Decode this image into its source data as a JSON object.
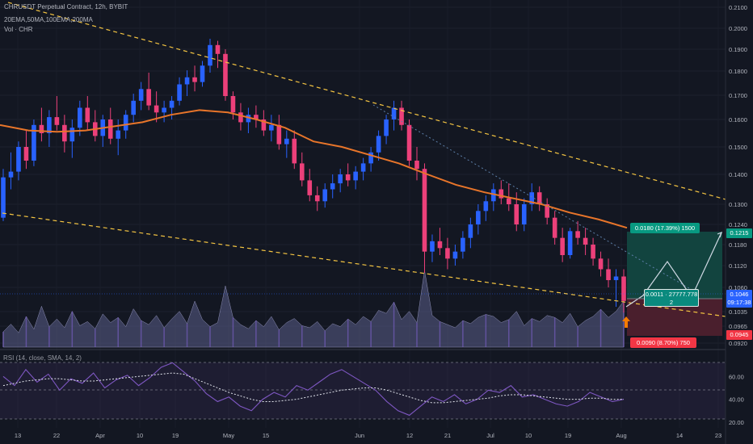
{
  "header": {
    "title": "CHRUSDT Perpetual Contract, 12h, BYBIT",
    "moving_averages": "20EMA,50MA,100EMA,200MA",
    "volume": "Vol · CHR",
    "rsi": "RSI (14, close, SMA, 14, 2)"
  },
  "price_axis": {
    "ticks": [
      "0.2100",
      "0.2000",
      "0.1900",
      "0.1800",
      "0.1700",
      "0.1600",
      "0.1500",
      "0.1400",
      "0.1300",
      "0.1240",
      "0.1180",
      "0.1120",
      "0.1060",
      "0.1035",
      "0.0965",
      "0.0920"
    ],
    "last_price": "0.1046",
    "countdown": "09:17:38",
    "tp_price": "0.1215",
    "sl_price": "0.0945"
  },
  "rsi_axis": {
    "ticks": [
      "60.00",
      "40.00",
      "20.00"
    ],
    "range": [
      15,
      80
    ],
    "bands": [
      70,
      30
    ]
  },
  "time_axis": {
    "labels": [
      "13",
      "22",
      "Apr",
      "10",
      "19",
      "May",
      "15",
      "Jun",
      "12",
      "21",
      "Jul",
      "10",
      "19",
      "Aug",
      "14",
      "23"
    ]
  },
  "position": {
    "target": "0.0180 (17.39%) 1500",
    "entry_line1": "0.0011 · 27777.778",
    "entry_line2": "2",
    "stop": "0.0090 (8.70%) 750"
  },
  "colors": {
    "background": "#131722",
    "bull": "#2962ff",
    "bear": "#ec407a",
    "ma": "#e8752a",
    "trendline": "#f5c542",
    "target_zone": "#12443f",
    "stop_zone": "#4a1f2d",
    "last_price": "#2962ff",
    "rsi": "#7e57c2"
  },
  "chart_data": {
    "type": "candlestick",
    "ylim": [
      0.092,
      0.21
    ],
    "candles": [
      [
        0.126,
        0.142,
        0.125,
        0.139
      ],
      [
        0.139,
        0.148,
        0.135,
        0.141
      ],
      [
        0.141,
        0.152,
        0.138,
        0.15
      ],
      [
        0.15,
        0.156,
        0.142,
        0.145
      ],
      [
        0.145,
        0.16,
        0.143,
        0.158
      ],
      [
        0.158,
        0.165,
        0.152,
        0.155
      ],
      [
        0.155,
        0.164,
        0.15,
        0.161
      ],
      [
        0.161,
        0.17,
        0.156,
        0.158
      ],
      [
        0.158,
        0.162,
        0.148,
        0.152
      ],
      [
        0.152,
        0.16,
        0.146,
        0.157
      ],
      [
        0.157,
        0.168,
        0.154,
        0.165
      ],
      [
        0.165,
        0.17,
        0.156,
        0.159
      ],
      [
        0.159,
        0.164,
        0.152,
        0.154
      ],
      [
        0.154,
        0.162,
        0.15,
        0.16
      ],
      [
        0.16,
        0.165,
        0.151,
        0.153
      ],
      [
        0.153,
        0.16,
        0.147,
        0.156
      ],
      [
        0.156,
        0.164,
        0.153,
        0.162
      ],
      [
        0.162,
        0.171,
        0.159,
        0.168
      ],
      [
        0.168,
        0.176,
        0.164,
        0.173
      ],
      [
        0.173,
        0.18,
        0.164,
        0.166
      ],
      [
        0.166,
        0.172,
        0.159,
        0.163
      ],
      [
        0.163,
        0.168,
        0.159,
        0.165
      ],
      [
        0.165,
        0.17,
        0.16,
        0.168
      ],
      [
        0.168,
        0.178,
        0.166,
        0.175
      ],
      [
        0.175,
        0.181,
        0.17,
        0.178
      ],
      [
        0.178,
        0.183,
        0.172,
        0.176
      ],
      [
        0.176,
        0.185,
        0.174,
        0.183
      ],
      [
        0.183,
        0.195,
        0.18,
        0.192
      ],
      [
        0.192,
        0.194,
        0.182,
        0.188
      ],
      [
        0.188,
        0.19,
        0.168,
        0.17
      ],
      [
        0.17,
        0.172,
        0.16,
        0.163
      ],
      [
        0.163,
        0.167,
        0.156,
        0.159
      ],
      [
        0.159,
        0.165,
        0.155,
        0.162
      ],
      [
        0.162,
        0.166,
        0.157,
        0.16
      ],
      [
        0.16,
        0.164,
        0.154,
        0.156
      ],
      [
        0.156,
        0.162,
        0.152,
        0.158
      ],
      [
        0.158,
        0.162,
        0.149,
        0.151
      ],
      [
        0.151,
        0.156,
        0.146,
        0.153
      ],
      [
        0.153,
        0.156,
        0.142,
        0.144
      ],
      [
        0.144,
        0.148,
        0.136,
        0.138
      ],
      [
        0.138,
        0.142,
        0.131,
        0.133
      ],
      [
        0.133,
        0.136,
        0.128,
        0.131
      ],
      [
        0.131,
        0.137,
        0.129,
        0.135
      ],
      [
        0.135,
        0.14,
        0.132,
        0.137
      ],
      [
        0.137,
        0.142,
        0.134,
        0.14
      ],
      [
        0.14,
        0.144,
        0.136,
        0.138
      ],
      [
        0.138,
        0.143,
        0.135,
        0.141
      ],
      [
        0.141,
        0.146,
        0.138,
        0.144
      ],
      [
        0.144,
        0.15,
        0.141,
        0.148
      ],
      [
        0.148,
        0.156,
        0.145,
        0.154
      ],
      [
        0.154,
        0.162,
        0.151,
        0.16
      ],
      [
        0.16,
        0.168,
        0.156,
        0.165
      ],
      [
        0.165,
        0.168,
        0.156,
        0.158
      ],
      [
        0.158,
        0.16,
        0.143,
        0.145
      ],
      [
        0.145,
        0.15,
        0.138,
        0.142
      ],
      [
        0.142,
        0.144,
        0.11,
        0.116
      ],
      [
        0.116,
        0.121,
        0.113,
        0.119
      ],
      [
        0.119,
        0.123,
        0.115,
        0.117
      ],
      [
        0.117,
        0.12,
        0.111,
        0.114
      ],
      [
        0.114,
        0.118,
        0.112,
        0.116
      ],
      [
        0.116,
        0.122,
        0.114,
        0.12
      ],
      [
        0.12,
        0.126,
        0.117,
        0.124
      ],
      [
        0.124,
        0.13,
        0.121,
        0.128
      ],
      [
        0.128,
        0.133,
        0.125,
        0.131
      ],
      [
        0.131,
        0.137,
        0.128,
        0.135
      ],
      [
        0.135,
        0.138,
        0.13,
        0.132
      ],
      [
        0.132,
        0.137,
        0.128,
        0.13
      ],
      [
        0.13,
        0.134,
        0.122,
        0.124
      ],
      [
        0.124,
        0.132,
        0.122,
        0.13
      ],
      [
        0.13,
        0.137,
        0.128,
        0.134
      ],
      [
        0.134,
        0.136,
        0.128,
        0.13
      ],
      [
        0.13,
        0.132,
        0.124,
        0.126
      ],
      [
        0.126,
        0.128,
        0.118,
        0.12
      ],
      [
        0.12,
        0.123,
        0.113,
        0.115
      ],
      [
        0.115,
        0.123,
        0.114,
        0.122
      ],
      [
        0.122,
        0.125,
        0.118,
        0.12
      ],
      [
        0.12,
        0.123,
        0.115,
        0.118
      ],
      [
        0.118,
        0.12,
        0.112,
        0.114
      ],
      [
        0.114,
        0.116,
        0.109,
        0.111
      ],
      [
        0.111,
        0.114,
        0.106,
        0.108
      ],
      [
        0.108,
        0.111,
        0.104,
        0.109
      ],
      [
        0.109,
        0.111,
        0.103,
        0.1046
      ]
    ],
    "volume": [
      30,
      45,
      28,
      60,
      35,
      80,
      40,
      55,
      38,
      70,
      42,
      50,
      36,
      65,
      48,
      58,
      40,
      75,
      52,
      44,
      62,
      38,
      55,
      70,
      46,
      90,
      54,
      40,
      48,
      120,
      58,
      44,
      36,
      52,
      40,
      60,
      34,
      48,
      56,
      42,
      38,
      50,
      32,
      46,
      40,
      55,
      44,
      60,
      50,
      72,
      66,
      88,
      54,
      70,
      48,
      150,
      62,
      50,
      44,
      38,
      52,
      46,
      58,
      64,
      60,
      48,
      54,
      70,
      42,
      56,
      50,
      62,
      58,
      48,
      66,
      40,
      52,
      60,
      74,
      58,
      70,
      90
    ],
    "ma": [
      0.158,
      0.156,
      0.1555,
      0.156,
      0.1575,
      0.159,
      0.162,
      0.164,
      0.163,
      0.16,
      0.157,
      0.152,
      0.15,
      0.147,
      0.144,
      0.14,
      0.1365,
      0.134,
      0.132,
      0.13,
      0.1275,
      0.1255,
      0.123
    ],
    "rsi": [
      60,
      52,
      66,
      55,
      62,
      48,
      58,
      54,
      63,
      50,
      57,
      61,
      52,
      59,
      68,
      72,
      64,
      56,
      45,
      38,
      42,
      34,
      30,
      40,
      46,
      42,
      52,
      48,
      55,
      62,
      66,
      60,
      54,
      48,
      38,
      30,
      26,
      34,
      42,
      38,
      44,
      36,
      40,
      48,
      46,
      52,
      42,
      44,
      40,
      36,
      34,
      38,
      46,
      42,
      38,
      40
    ],
    "rsi_sma": [
      52,
      54,
      56,
      57,
      58,
      58,
      57,
      56,
      56,
      57,
      58,
      59,
      60,
      61,
      62,
      63,
      62,
      58,
      54,
      50,
      46,
      43,
      40,
      38,
      38,
      39,
      40,
      42,
      44,
      46,
      48,
      49,
      50,
      50,
      48,
      45,
      42,
      39,
      37,
      37,
      38,
      39,
      40,
      41,
      43,
      44,
      44,
      43,
      42,
      41,
      40,
      40,
      41,
      41,
      40,
      40
    ]
  }
}
